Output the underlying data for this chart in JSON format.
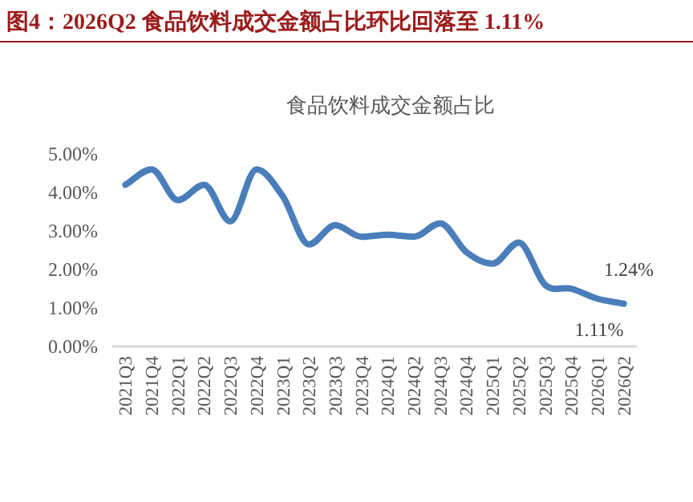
{
  "chart_data": {
    "type": "line",
    "title": "图4：2026Q2 食品饮料成交金额占比环比回落至 1.11%",
    "subtitle": "食品饮料成交金额占比",
    "categories": [
      "2021Q3",
      "2021Q4",
      "2022Q1",
      "2022Q2",
      "2022Q3",
      "2022Q4",
      "2023Q1",
      "2023Q2",
      "2023Q3",
      "2023Q4",
      "2024Q1",
      "2024Q2",
      "2024Q3",
      "2024Q4",
      "2025Q1",
      "2025Q2",
      "2025Q3",
      "2025Q4",
      "2026Q1",
      "2026Q2"
    ],
    "series": [
      {
        "color": "#4a7ebb",
        "values": [
          4.2,
          4.6,
          3.8,
          4.2,
          3.25,
          4.6,
          3.9,
          2.65,
          3.15,
          2.85,
          2.9,
          2.85,
          3.2,
          2.45,
          2.15,
          2.7,
          1.6,
          1.5,
          1.24,
          1.11
        ],
        "value_labels": [
          null,
          null,
          null,
          null,
          null,
          null,
          null,
          null,
          null,
          null,
          null,
          null,
          null,
          null,
          null,
          null,
          null,
          null,
          "1.24%",
          "1.11%"
        ]
      }
    ],
    "ylim": [
      0,
      5
    ],
    "yticks": [
      {
        "value": 0,
        "label": "0.00%"
      },
      {
        "value": 1,
        "label": "1.00%"
      },
      {
        "value": 2,
        "label": "2.00%"
      },
      {
        "value": 3,
        "label": "3.00%"
      },
      {
        "value": 4,
        "label": "4.00%"
      },
      {
        "value": 5,
        "label": "5.00%"
      }
    ],
    "grid": false,
    "marker": "none",
    "line_style": "solid"
  }
}
